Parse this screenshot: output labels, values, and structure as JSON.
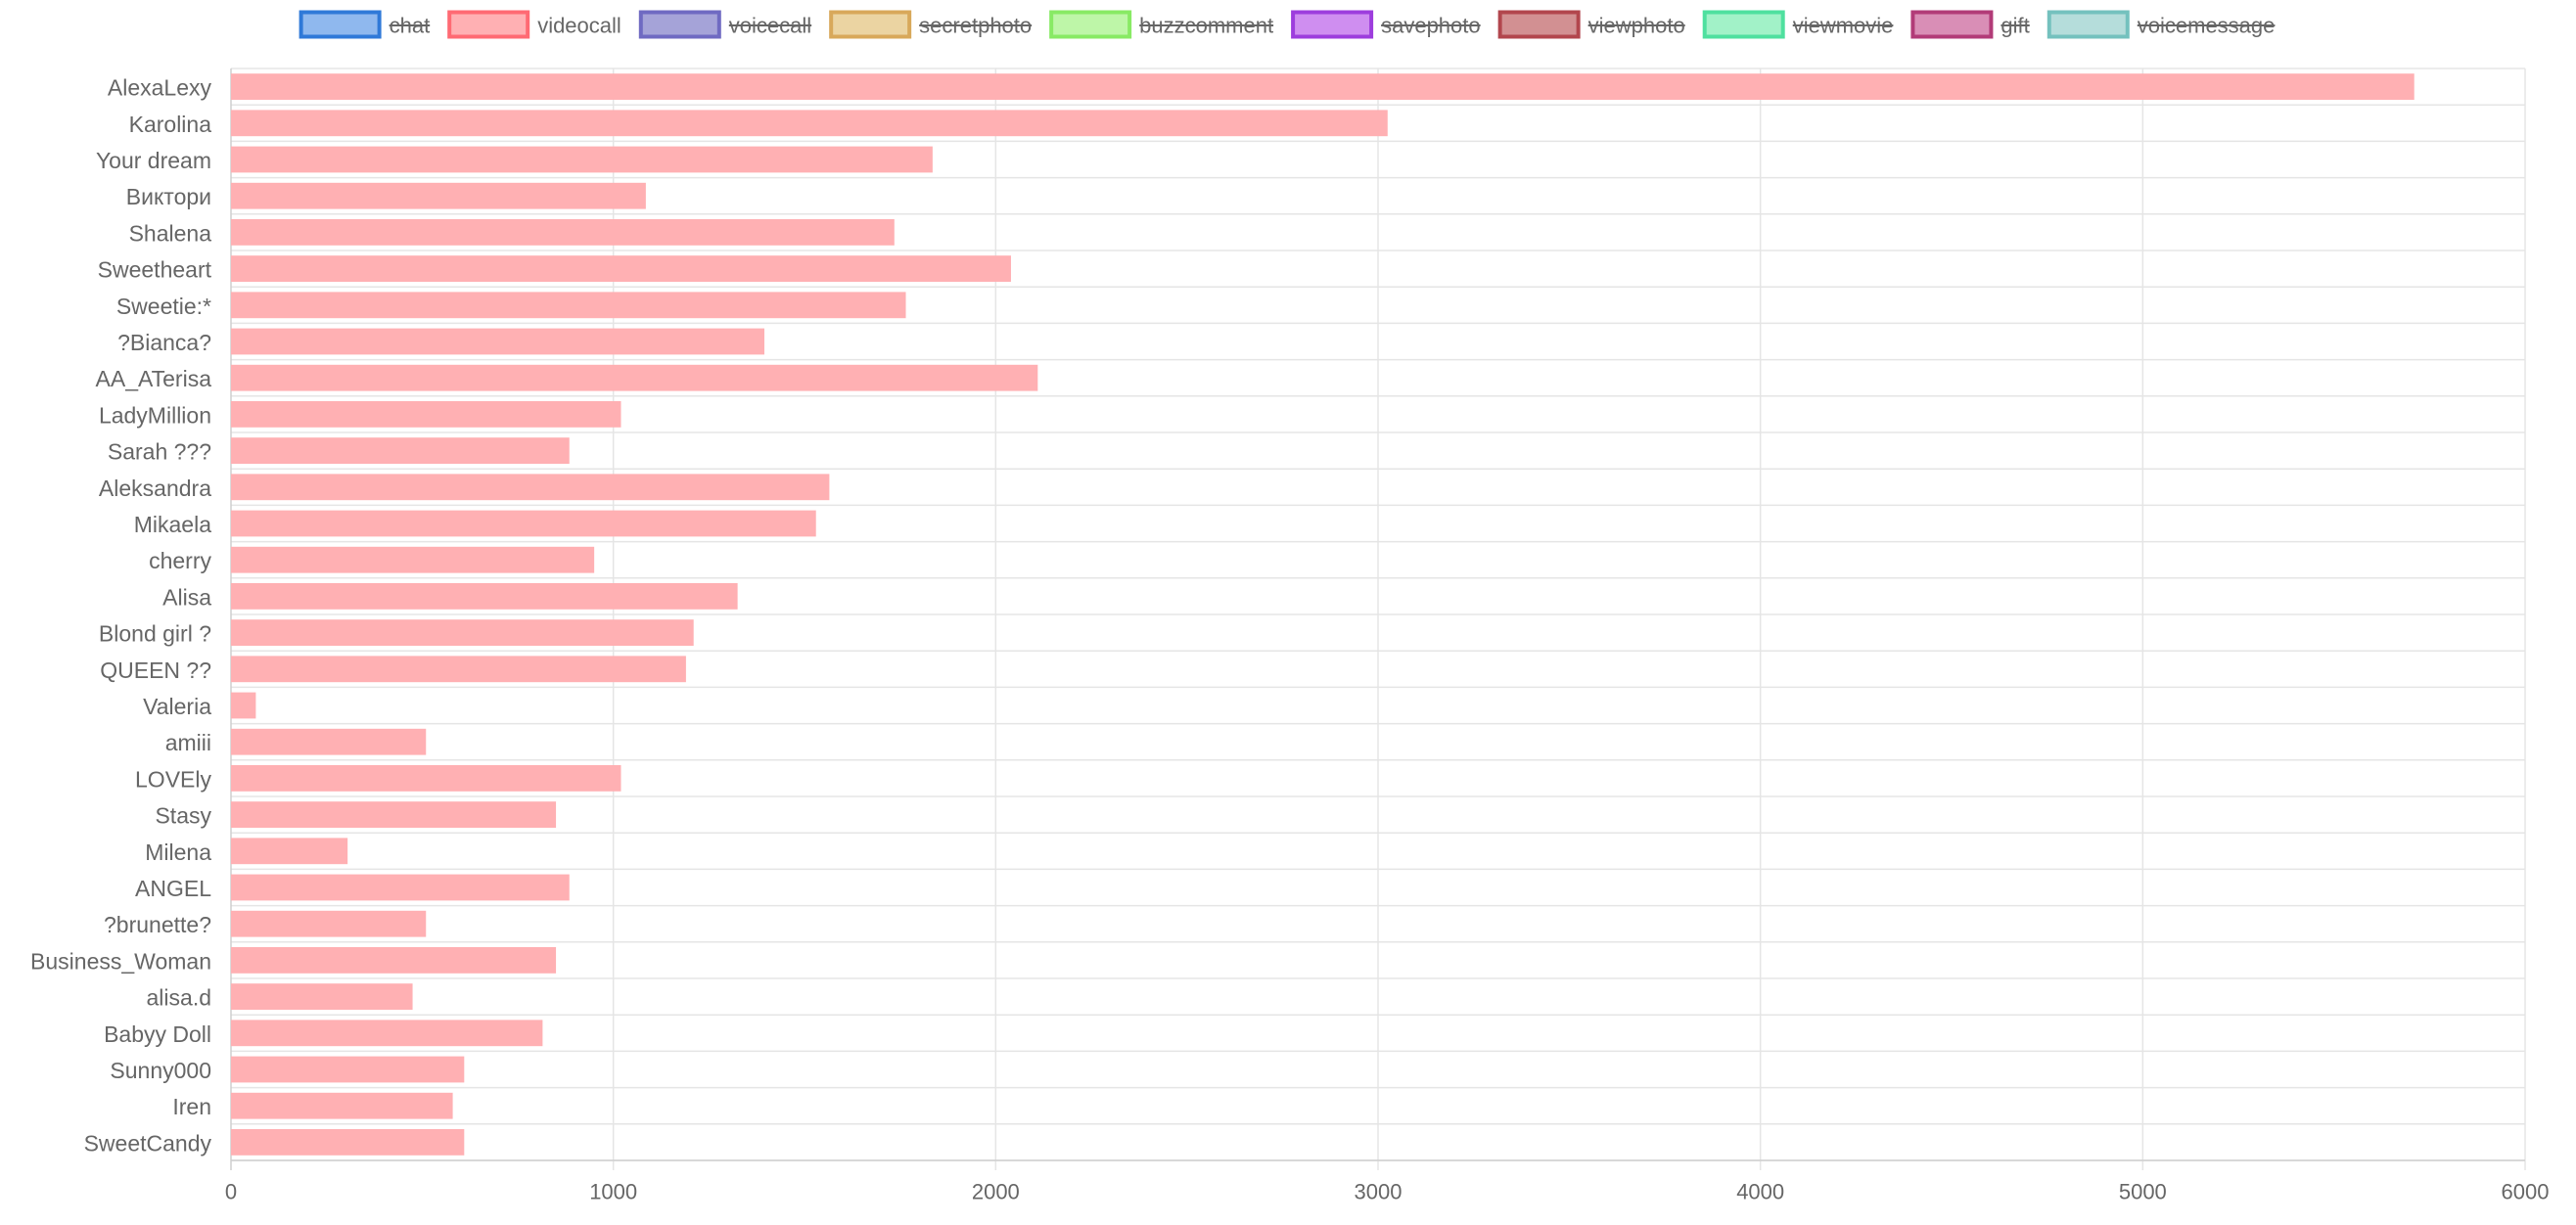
{
  "chart_data": {
    "type": "bar",
    "orientation": "horizontal",
    "legend_position": "top",
    "grid": true,
    "xlim": [
      0,
      6000
    ],
    "x_ticks": [
      0,
      1000,
      2000,
      3000,
      4000,
      5000,
      6000
    ],
    "legend": [
      {
        "name": "chat",
        "fill": "#8fb8ee",
        "stroke": "#2f79d8",
        "hidden": true
      },
      {
        "name": "videocall",
        "fill": "#ffb0b3",
        "stroke": "#ff6a73",
        "hidden": false
      },
      {
        "name": "voicecall",
        "fill": "#a5a3d8",
        "stroke": "#6f6ac2",
        "hidden": true
      },
      {
        "name": "secretphoto",
        "fill": "#ebd4a2",
        "stroke": "#d8a85a",
        "hidden": true
      },
      {
        "name": "buzzcomment",
        "fill": "#bef6a8",
        "stroke": "#88ea64",
        "hidden": true
      },
      {
        "name": "savephoto",
        "fill": "#cf8ef0",
        "stroke": "#9d3ddd",
        "hidden": true
      },
      {
        "name": "viewphoto",
        "fill": "#d29092",
        "stroke": "#b2464d",
        "hidden": true
      },
      {
        "name": "viewmovie",
        "fill": "#a2f2c8",
        "stroke": "#4fe09f",
        "hidden": true
      },
      {
        "name": "gift",
        "fill": "#d98eb6",
        "stroke": "#b23b78",
        "hidden": true
      },
      {
        "name": "voicemessage",
        "fill": "#b5dddb",
        "stroke": "#74c1be",
        "hidden": true
      }
    ],
    "categories": [
      "AlexaLexy",
      "Karolina",
      "Your dream",
      "Виктори",
      "Shalena",
      "Sweetheart",
      "Sweetie:*",
      "?Bianca?",
      "AA_ATerisa",
      "LadyMillion",
      "Sarah ???",
      "Aleksandra",
      "Mikaela",
      "cherry",
      "Alisa",
      "Blond girl ?",
      "QUEEN ??",
      "Valeria",
      "amiii",
      "LOVEly",
      "Stasy",
      "Milena",
      "ANGEL",
      "?brunette?",
      "Business_Woman",
      "alisa.d",
      "Babyy Doll",
      "Sunny000",
      "Iren",
      "SweetCandy"
    ],
    "series": [
      {
        "name": "videocall",
        "color": "#ffb0b3",
        "values": [
          5710,
          3025,
          1835,
          1085,
          1735,
          2040,
          1765,
          1395,
          2110,
          1020,
          885,
          1565,
          1530,
          950,
          1325,
          1210,
          1190,
          65,
          510,
          1020,
          850,
          305,
          885,
          510,
          850,
          475,
          815,
          610,
          580,
          610
        ]
      }
    ]
  }
}
